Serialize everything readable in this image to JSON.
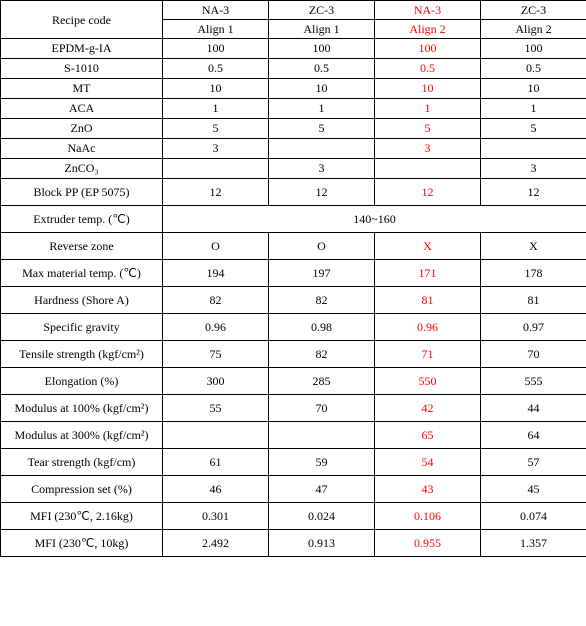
{
  "colors": {
    "text": "#000000",
    "accent": "#ff0000",
    "border": "#000000",
    "bg": "#ffffff"
  },
  "typography": {
    "family": "Times New Roman",
    "size_pt": 12
  },
  "header": {
    "label": "Recipe code",
    "cols": [
      {
        "l1": "NA-3",
        "l2": "Align 1",
        "red": false
      },
      {
        "l1": "ZC-3",
        "l2": "Align 1",
        "red": false
      },
      {
        "l1": "NA-3",
        "l2": "Align 2",
        "red": true
      },
      {
        "l1": "ZC-3",
        "l2": "Align 2",
        "red": false
      }
    ]
  },
  "short_rows": [
    {
      "label": "EPDM-g-IA",
      "v": [
        "100",
        "100",
        "100",
        "100"
      ]
    },
    {
      "label": "S-1010",
      "v": [
        "0.5",
        "0.5",
        "0.5",
        "0.5"
      ]
    },
    {
      "label": "MT",
      "v": [
        "10",
        "10",
        "10",
        "10"
      ]
    },
    {
      "label": "ACA",
      "v": [
        "1",
        "1",
        "1",
        "1"
      ]
    },
    {
      "label": "ZnO",
      "v": [
        "5",
        "5",
        "5",
        "5"
      ]
    },
    {
      "label": "NaAc",
      "v": [
        "3",
        "",
        "3",
        ""
      ]
    },
    {
      "label": "ZnCO₃",
      "v": [
        "",
        "3",
        "",
        "3"
      ]
    }
  ],
  "block_pp_row": {
    "label": "Block PP (EP 5075)",
    "v": [
      "12",
      "12",
      "12",
      "12"
    ]
  },
  "extruder_row": {
    "label": "Extruder temp. (℃)",
    "merged": "140~160"
  },
  "tall_rows": [
    {
      "label": "Reverse zone",
      "v": [
        "O",
        "O",
        "X",
        "X"
      ]
    },
    {
      "label": "Max material temp. (℃)",
      "v": [
        "194",
        "197",
        "171",
        "178"
      ]
    },
    {
      "label": "Hardness (Shore A)",
      "v": [
        "82",
        "82",
        "81",
        "81"
      ]
    },
    {
      "label": "Specific gravity",
      "v": [
        "0.96",
        "0.98",
        "0.96",
        "0.97"
      ]
    },
    {
      "label": "Tensile strength (kgf/cm²)",
      "v": [
        "75",
        "82",
        "71",
        "70"
      ]
    },
    {
      "label": "Elongation (%)",
      "v": [
        "300",
        "285",
        "550",
        "555"
      ]
    },
    {
      "label": "Modulus at 100% (kgf/cm²)",
      "v": [
        "55",
        "70",
        "42",
        "44"
      ]
    },
    {
      "label": "Modulus at 300% (kgf/cm²)",
      "v": [
        "",
        "",
        "65",
        "64"
      ]
    },
    {
      "label": "Tear strength (kgf/cm)",
      "v": [
        "61",
        "59",
        "54",
        "57"
      ]
    },
    {
      "label": "Compression set (%)",
      "v": [
        "46",
        "47",
        "43",
        "45"
      ]
    },
    {
      "label": "MFI (230℃, 2.16kg)",
      "v": [
        "0.301",
        "0.024",
        "0.106",
        "0.074"
      ]
    },
    {
      "label": "MFI (230℃, 10kg)",
      "v": [
        "2.492",
        "0.913",
        "0.955",
        "1.357"
      ]
    }
  ],
  "red_col_index": 2
}
